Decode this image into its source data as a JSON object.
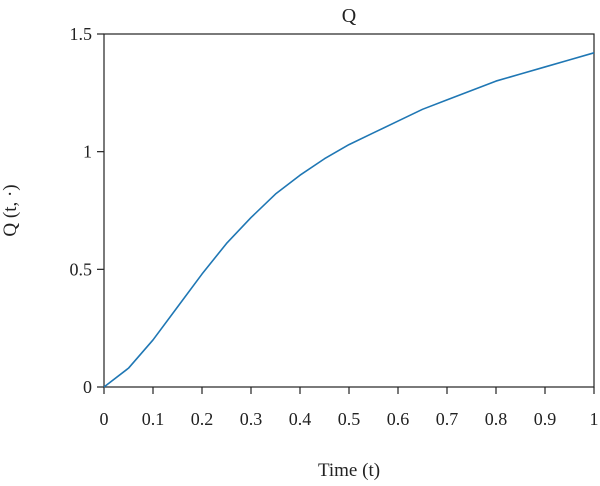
{
  "chart_data": {
    "type": "line",
    "title": "Q",
    "xlabel": "Time (t)",
    "ylabel": "Q (t, ·)",
    "xlim": [
      0,
      1
    ],
    "ylim": [
      0,
      1.5
    ],
    "grid": false,
    "x_ticks": [
      {
        "value": 0,
        "label": "0"
      },
      {
        "value": 0.1,
        "label": "0.1"
      },
      {
        "value": 0.2,
        "label": "0.2"
      },
      {
        "value": 0.3,
        "label": "0.3"
      },
      {
        "value": 0.4,
        "label": "0.4"
      },
      {
        "value": 0.5,
        "label": "0.5"
      },
      {
        "value": 0.6,
        "label": "0.6"
      },
      {
        "value": 0.7,
        "label": "0.7"
      },
      {
        "value": 0.8,
        "label": "0.8"
      },
      {
        "value": 0.9,
        "label": "0.9"
      },
      {
        "value": 1,
        "label": "1"
      }
    ],
    "y_ticks": [
      {
        "value": 0,
        "label": "0"
      },
      {
        "value": 0.5,
        "label": "0.5"
      },
      {
        "value": 1,
        "label": "1"
      },
      {
        "value": 1.5,
        "label": "1.5"
      }
    ],
    "series": [
      {
        "color": "#1f77b4",
        "x": [
          0,
          0.05,
          0.1,
          0.15,
          0.2,
          0.25,
          0.3,
          0.35,
          0.4,
          0.45,
          0.5,
          0.55,
          0.6,
          0.65,
          0.7,
          0.75,
          0.8,
          0.85,
          0.9,
          0.95,
          1.0
        ],
        "y": [
          0,
          0.08,
          0.2,
          0.34,
          0.48,
          0.61,
          0.72,
          0.82,
          0.9,
          0.97,
          1.03,
          1.08,
          1.13,
          1.18,
          1.22,
          1.26,
          1.3,
          1.33,
          1.36,
          1.39,
          1.42
        ]
      }
    ]
  }
}
